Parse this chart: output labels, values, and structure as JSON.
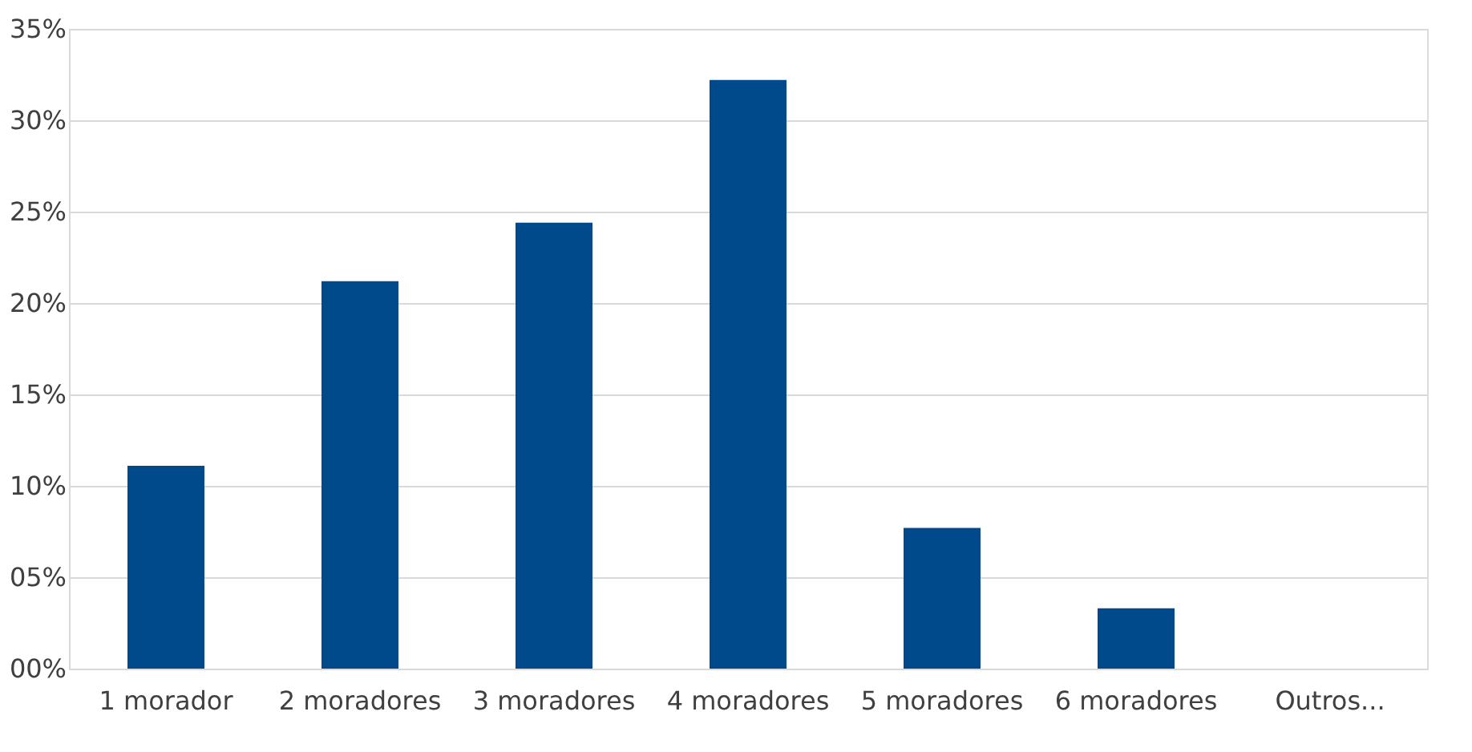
{
  "chart_data": {
    "type": "bar",
    "categories": [
      "1 morador",
      "2 moradores",
      "3 moradores",
      "4 moradores",
      "5 moradores",
      "6 moradores",
      "Outros..."
    ],
    "values": [
      11.1,
      21.2,
      24.4,
      32.2,
      7.7,
      3.3,
      0
    ],
    "color": "#004a8b",
    "ylim": [
      0,
      35
    ],
    "yticks": [
      {
        "value": 0,
        "label": "00%"
      },
      {
        "value": 5,
        "label": "05%"
      },
      {
        "value": 10,
        "label": "10%"
      },
      {
        "value": 15,
        "label": "15%"
      },
      {
        "value": 20,
        "label": "20%"
      },
      {
        "value": 25,
        "label": "25%"
      },
      {
        "value": 30,
        "label": "30%"
      },
      {
        "value": 35,
        "label": "35%"
      }
    ],
    "grid": "y"
  }
}
